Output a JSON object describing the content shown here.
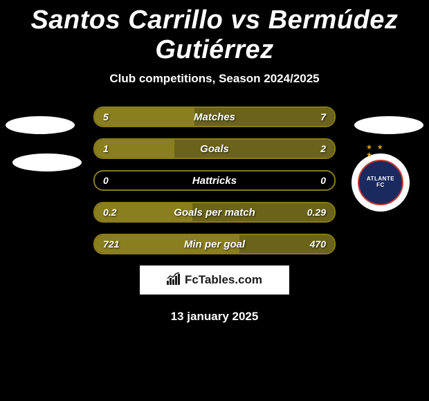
{
  "title": "Santos Carrillo vs Bermúdez Gutiérrez",
  "subtitle": "Club competitions, Season 2024/2025",
  "date": "13 january 2025",
  "branding": "FcTables.com",
  "club_badge": {
    "name": "ATLANTE",
    "sub": "FC",
    "stars": "★ ★ ★"
  },
  "colors": {
    "bar_border": "#8a7a1f",
    "bar_left_fill": "#8a7f1f",
    "bar_right_fill": "#6b631a",
    "background": "#000000",
    "text": "#ffffff"
  },
  "stats": [
    {
      "label": "Matches",
      "left_value": "5",
      "right_value": "7",
      "left_pct": 41.7,
      "right_pct": 58.3
    },
    {
      "label": "Goals",
      "left_value": "1",
      "right_value": "2",
      "left_pct": 33.3,
      "right_pct": 66.7
    },
    {
      "label": "Hattricks",
      "left_value": "0",
      "right_value": "0",
      "left_pct": 0,
      "right_pct": 0
    },
    {
      "label": "Goals per match",
      "left_value": "0.2",
      "right_value": "0.29",
      "left_pct": 40.8,
      "right_pct": 59.2
    },
    {
      "label": "Min per goal",
      "left_value": "721",
      "right_value": "470",
      "left_pct": 60.5,
      "right_pct": 39.5
    }
  ]
}
